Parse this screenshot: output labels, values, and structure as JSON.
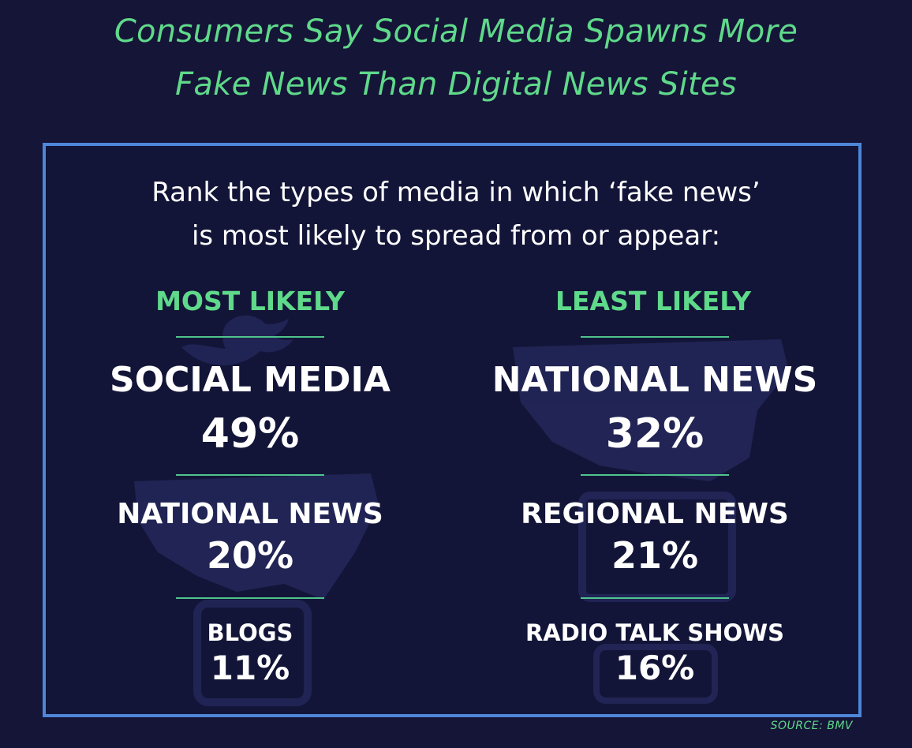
{
  "title": {
    "line1": "Consumers Say Social Media Spawns More",
    "line2": "Fake News Than Digital News Sites"
  },
  "question": {
    "line1": "Rank the types of media in which ‘fake news’",
    "line2": "is most likely to spread from or appear:"
  },
  "source": "SOURCE: BMV",
  "colors": {
    "background": "#151538",
    "accent_green": "#5fd98a",
    "frame_blue": "#4e86d8",
    "text_white": "#ffffff"
  },
  "chart_data": {
    "type": "table",
    "title": "Consumers Say Social Media Spawns More Fake News Than Digital News Sites",
    "question": "Rank the types of media in which ‘fake news’ is most likely to spread from or appear:",
    "columns": [
      {
        "heading": "MOST LIKELY",
        "entries": [
          {
            "label": "SOCIAL MEDIA",
            "value": 49,
            "display": "49%"
          },
          {
            "label": "NATIONAL NEWS",
            "value": 20,
            "display": "20%"
          },
          {
            "label": "BLOGS",
            "value": 11,
            "display": "11%"
          }
        ]
      },
      {
        "heading": "LEAST LIKELY",
        "entries": [
          {
            "label": "NATIONAL NEWS",
            "value": 32,
            "display": "32%"
          },
          {
            "label": "REGIONAL NEWS",
            "value": 21,
            "display": "21%"
          },
          {
            "label": "RADIO TALK SHOWS",
            "value": 16,
            "display": "16%"
          }
        ]
      }
    ],
    "source": "SOURCE: BMV"
  }
}
